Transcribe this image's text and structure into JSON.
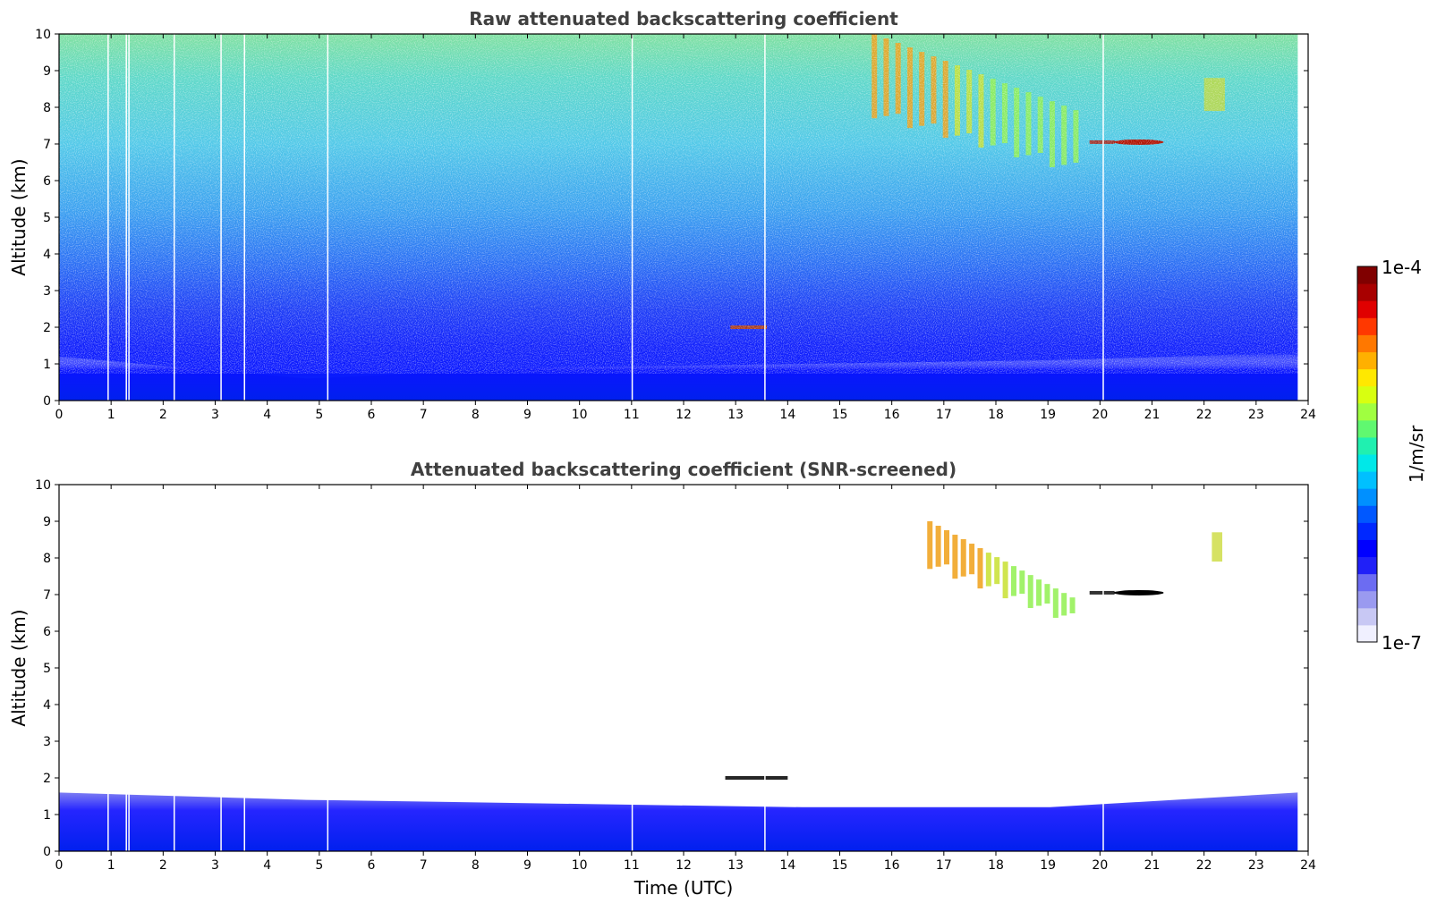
{
  "chart_data": [
    {
      "type": "heatmap",
      "title": "Raw attenuated backscattering coefficient",
      "xlabel": "",
      "ylabel": "Altitude (km)",
      "xlim": [
        0,
        24
      ],
      "ylim": [
        0,
        10
      ],
      "x_ticks": [
        "0",
        "1",
        "2",
        "3",
        "4",
        "5",
        "6",
        "7",
        "8",
        "9",
        "10",
        "11",
        "12",
        "13",
        "14",
        "15",
        "16",
        "17",
        "18",
        "19",
        "20",
        "21",
        "22",
        "23",
        "24"
      ],
      "y_ticks": [
        "0",
        "1",
        "2",
        "3",
        "4",
        "5",
        "6",
        "7",
        "8",
        "9",
        "10"
      ],
      "data_end_time": 23.8,
      "gaps_utc": [
        0.93,
        1.28,
        1.33,
        2.2,
        3.1,
        3.55,
        5.15,
        11.0,
        13.55,
        20.05
      ],
      "features": [
        {
          "kind": "boundary layer aerosol",
          "time": [
            0,
            23.8
          ],
          "altitude_top_km": [
            1.2,
            0.6,
            0.9,
            1.0,
            1.1,
            1.3
          ]
        },
        {
          "kind": "cirrus fall streaks",
          "time": [
            15.5,
            19.6
          ],
          "altitude_km": [
            6.1,
            10.0
          ]
        },
        {
          "kind": "thin cloud layer",
          "time": [
            19.8,
            21.0
          ],
          "altitude_km": 7.05
        },
        {
          "kind": "cirrus",
          "time": [
            22.0,
            22.4
          ],
          "altitude_km": [
            7.9,
            8.8
          ]
        },
        {
          "kind": "low cloud",
          "time": [
            12.9,
            13.6
          ],
          "altitude_km": 2.0
        }
      ]
    },
    {
      "type": "heatmap",
      "title": "Attenuated backscattering coefficient (SNR-screened)",
      "xlabel": "Time (UTC)",
      "ylabel": "Altitude (km)",
      "xlim": [
        0,
        24
      ],
      "ylim": [
        0,
        10
      ],
      "x_ticks": [
        "0",
        "1",
        "2",
        "3",
        "4",
        "5",
        "6",
        "7",
        "8",
        "9",
        "10",
        "11",
        "12",
        "13",
        "14",
        "15",
        "16",
        "17",
        "18",
        "19",
        "20",
        "21",
        "22",
        "23",
        "24"
      ],
      "y_ticks": [
        "0",
        "1",
        "2",
        "3",
        "4",
        "5",
        "6",
        "7",
        "8",
        "9",
        "10"
      ],
      "data_end_time": 23.8,
      "features": [
        {
          "kind": "boundary layer aerosol",
          "time": [
            0,
            23.8
          ],
          "altitude_top_km": [
            1.6,
            1.4,
            1.3,
            1.2,
            1.2,
            1.6
          ]
        },
        {
          "kind": "cirrus fall streaks",
          "time": [
            16.6,
            19.5
          ],
          "altitude_km": [
            6.1,
            9.0
          ]
        },
        {
          "kind": "thin cloud layer",
          "time": [
            19.8,
            21.0
          ],
          "altitude_km": 7.05
        },
        {
          "kind": "cirrus",
          "time": [
            22.15,
            22.35
          ],
          "altitude_km": [
            7.9,
            8.7
          ]
        },
        {
          "kind": "low cloud",
          "time": [
            12.8,
            14.0
          ],
          "altitude_km": 2.0
        }
      ]
    }
  ],
  "colorbar": {
    "label": "1/m/sr",
    "max_label": "1e-4",
    "min_label": "1e-7",
    "scale": "log",
    "colormap": "jet",
    "colors": [
      "#f0f0ff",
      "#c8c8f4",
      "#9a9af0",
      "#6c6cf2",
      "#2020f8",
      "#0000ff",
      "#0028ff",
      "#0058ff",
      "#0090ff",
      "#00c0ff",
      "#00e8e8",
      "#20f0b0",
      "#60f870",
      "#a0ff40",
      "#d8ff10",
      "#ffe800",
      "#ffb000",
      "#ff7800",
      "#ff3800",
      "#e00000",
      "#a80000",
      "#800000"
    ]
  }
}
